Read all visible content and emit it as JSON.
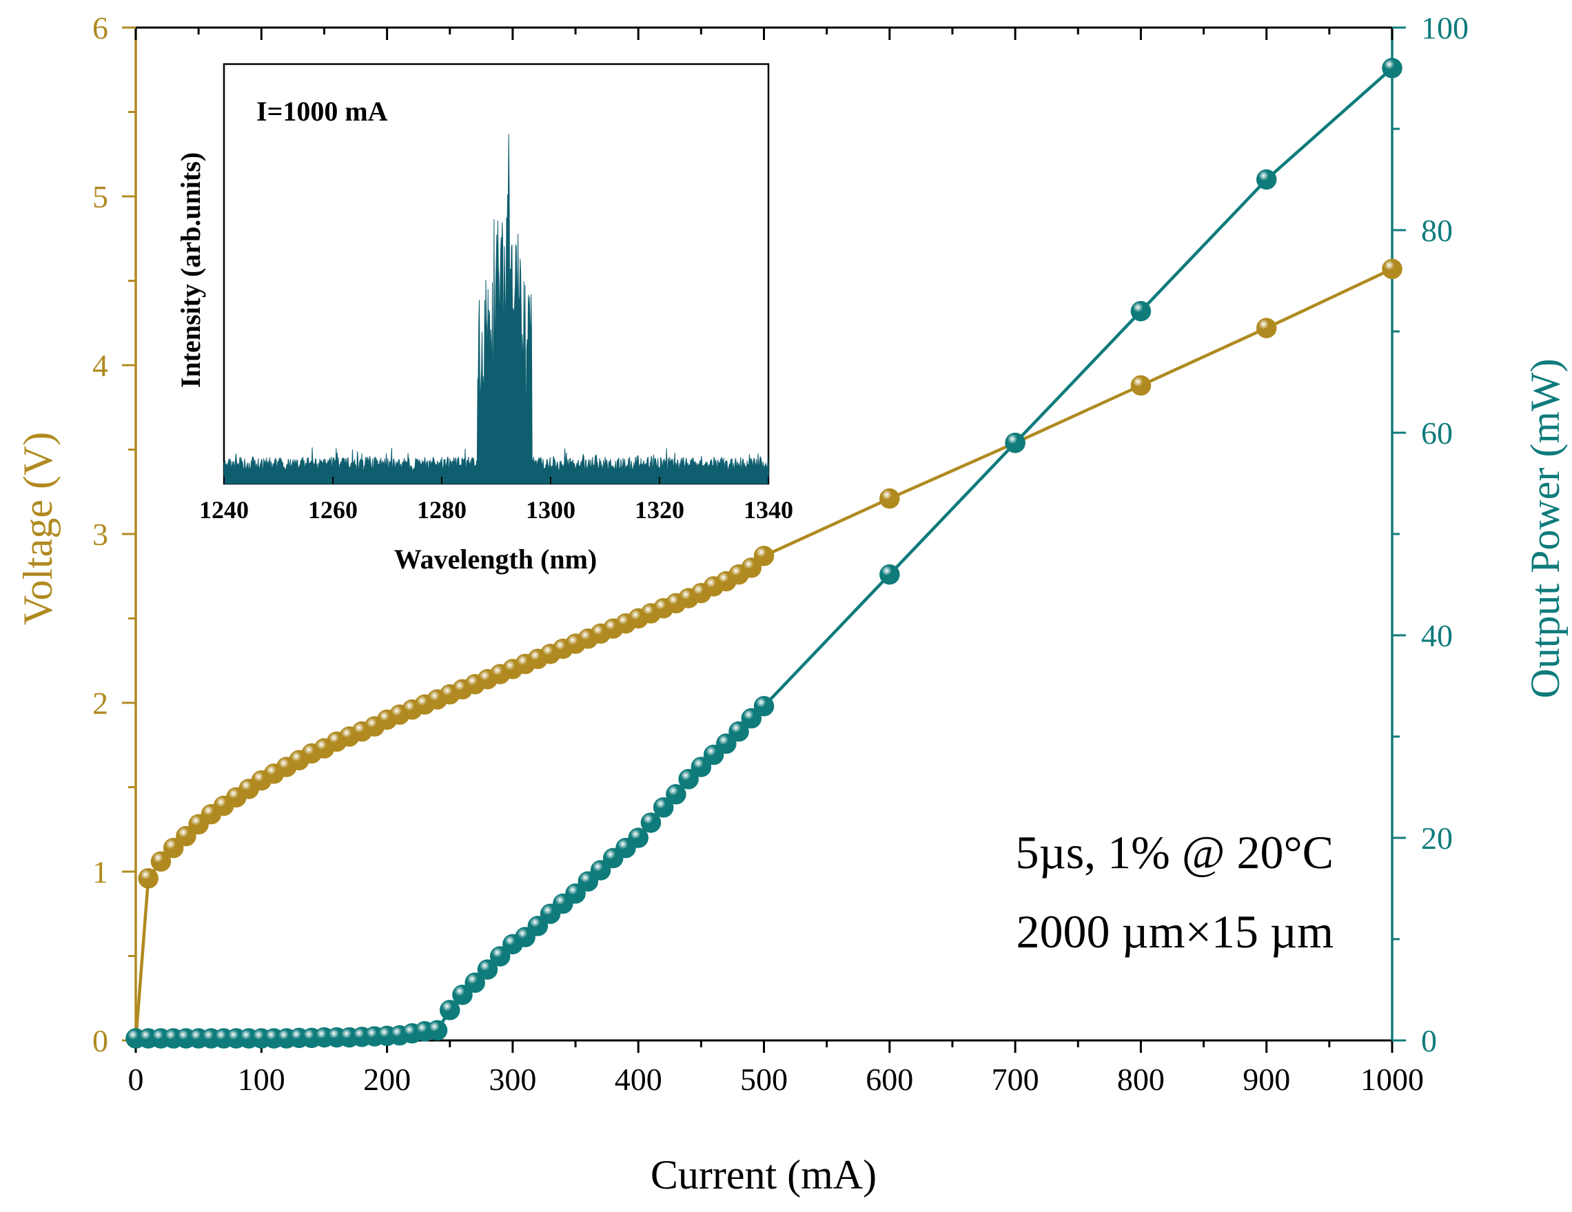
{
  "chart_data": {
    "type": "line",
    "title": "",
    "xlabel": "Current (mA)",
    "ylabel_left": "Voltage (V)",
    "ylabel_right": "Output Power (mW)",
    "xlim": [
      0,
      1000
    ],
    "ylim_left": [
      0,
      6
    ],
    "ylim_right": [
      0,
      100
    ],
    "x_ticks": [
      "0",
      "100",
      "200",
      "300",
      "400",
      "500",
      "600",
      "700",
      "800",
      "900",
      "1000"
    ],
    "y_left_ticks": [
      "0",
      "1",
      "2",
      "3",
      "4",
      "5",
      "6"
    ],
    "y_right_ticks": [
      "0",
      "20",
      "40",
      "60",
      "80",
      "100"
    ],
    "colors": {
      "voltage": "#b08a20",
      "power": "#0f7b7b",
      "inset_fill": "#0e5e6f"
    },
    "annotation": {
      "line1": "5µs, 1% @ 20°C",
      "line2": "2000 µm×15 µm"
    },
    "series": [
      {
        "name": "Voltage",
        "axis": "left",
        "x": [
          0,
          10,
          20,
          30,
          40,
          50,
          60,
          70,
          80,
          90,
          100,
          110,
          120,
          130,
          140,
          150,
          160,
          170,
          180,
          190,
          200,
          210,
          220,
          230,
          240,
          250,
          260,
          270,
          280,
          290,
          300,
          310,
          320,
          330,
          340,
          350,
          360,
          370,
          380,
          390,
          400,
          410,
          420,
          430,
          440,
          450,
          460,
          470,
          480,
          490,
          500,
          600,
          700,
          800,
          900,
          1000
        ],
        "values": [
          0,
          0.96,
          1.06,
          1.14,
          1.21,
          1.28,
          1.34,
          1.39,
          1.44,
          1.49,
          1.54,
          1.58,
          1.62,
          1.66,
          1.7,
          1.73,
          1.77,
          1.8,
          1.83,
          1.86,
          1.9,
          1.93,
          1.96,
          1.99,
          2.02,
          2.05,
          2.08,
          2.11,
          2.14,
          2.17,
          2.2,
          2.23,
          2.26,
          2.29,
          2.32,
          2.35,
          2.38,
          2.41,
          2.44,
          2.47,
          2.5,
          2.53,
          2.56,
          2.59,
          2.62,
          2.65,
          2.69,
          2.72,
          2.76,
          2.8,
          2.87,
          3.21,
          3.54,
          3.88,
          4.22,
          4.57
        ]
      },
      {
        "name": "Output Power",
        "axis": "right",
        "x": [
          0,
          10,
          20,
          30,
          40,
          50,
          60,
          70,
          80,
          90,
          100,
          110,
          120,
          130,
          140,
          150,
          160,
          170,
          180,
          190,
          200,
          210,
          220,
          230,
          240,
          250,
          260,
          270,
          280,
          290,
          300,
          310,
          320,
          330,
          340,
          350,
          360,
          370,
          380,
          390,
          400,
          410,
          420,
          430,
          440,
          450,
          460,
          470,
          480,
          490,
          500,
          600,
          700,
          800,
          900,
          1000
        ],
        "values": [
          0.2,
          0.2,
          0.2,
          0.2,
          0.2,
          0.2,
          0.2,
          0.2,
          0.2,
          0.2,
          0.2,
          0.2,
          0.2,
          0.25,
          0.25,
          0.3,
          0.3,
          0.3,
          0.35,
          0.4,
          0.45,
          0.5,
          0.7,
          0.9,
          1.0,
          3.0,
          4.5,
          5.7,
          7.0,
          8.3,
          9.5,
          10.2,
          11.3,
          12.5,
          13.5,
          14.5,
          15.7,
          16.8,
          18.0,
          19.0,
          20.0,
          21.5,
          23.0,
          24.3,
          25.8,
          27.0,
          28.2,
          29.3,
          30.5,
          31.8,
          33.0,
          46.0,
          59.0,
          72.0,
          85.0,
          96.0
        ]
      }
    ],
    "inset": {
      "type": "area",
      "label": "I=1000 mA",
      "xlabel": "Wavelength (nm)",
      "ylabel": "Intensity (arb.units)",
      "xlim": [
        1240,
        1340
      ],
      "x_ticks": [
        "1240",
        "1260",
        "1280",
        "1300",
        "1320",
        "1340"
      ],
      "ylim": [
        0,
        1
      ],
      "baseline_level": 0.07,
      "peaks": [
        {
          "wavelength": 1287.5,
          "value": 0.3
        },
        {
          "wavelength": 1288.8,
          "value": 0.45
        },
        {
          "wavelength": 1290.2,
          "value": 0.7
        },
        {
          "wavelength": 1291.0,
          "value": 0.78
        },
        {
          "wavelength": 1292.2,
          "value": 1.0
        },
        {
          "wavelength": 1293.0,
          "value": 0.62
        },
        {
          "wavelength": 1294.0,
          "value": 0.55
        },
        {
          "wavelength": 1295.0,
          "value": 0.38
        },
        {
          "wavelength": 1296.0,
          "value": 0.22
        }
      ]
    }
  }
}
